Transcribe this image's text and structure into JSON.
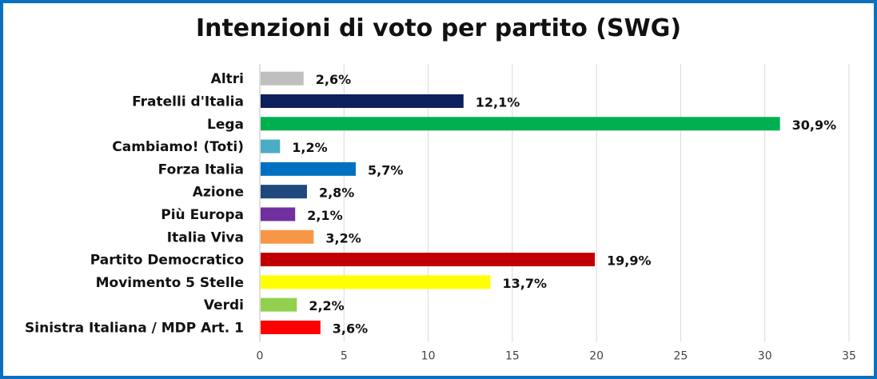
{
  "chart_data": {
    "type": "bar",
    "orientation": "horizontal",
    "title": "Intenzioni di voto per partito (SWG)",
    "xlabel": "",
    "ylabel": "",
    "xlim": [
      0,
      35
    ],
    "xticks": [
      "0",
      "5",
      "10",
      "15",
      "20",
      "25",
      "30",
      "35"
    ],
    "grid": true,
    "legend": "none",
    "categories": [
      "Altri",
      "Fratelli d'Italia",
      "Lega",
      "Cambiamo! (Toti)",
      "Forza Italia",
      "Azione",
      "Più Europa",
      "Italia Viva",
      "Partito Democratico",
      "Movimento 5 Stelle",
      "Verdi",
      "Sinistra Italiana / MDP Art. 1"
    ],
    "values": [
      2.6,
      12.1,
      30.9,
      1.2,
      5.7,
      2.8,
      2.1,
      3.2,
      19.9,
      13.7,
      2.2,
      3.6
    ],
    "data_labels": [
      "2,6%",
      "12,1%",
      "30,9%",
      "1,2%",
      "5,7%",
      "2,8%",
      "2,1%",
      "3,2%",
      "19,9%",
      "13,7%",
      "2,2%",
      "3,6%"
    ],
    "colors": [
      "#bfbfbf",
      "#0d1f5c",
      "#00b050",
      "#4bacc6",
      "#0070c0",
      "#1f497d",
      "#7030a0",
      "#f79646",
      "#c00000",
      "#ffff00",
      "#92d050",
      "#ff0000"
    ],
    "frame_color": "#0a70c0"
  }
}
